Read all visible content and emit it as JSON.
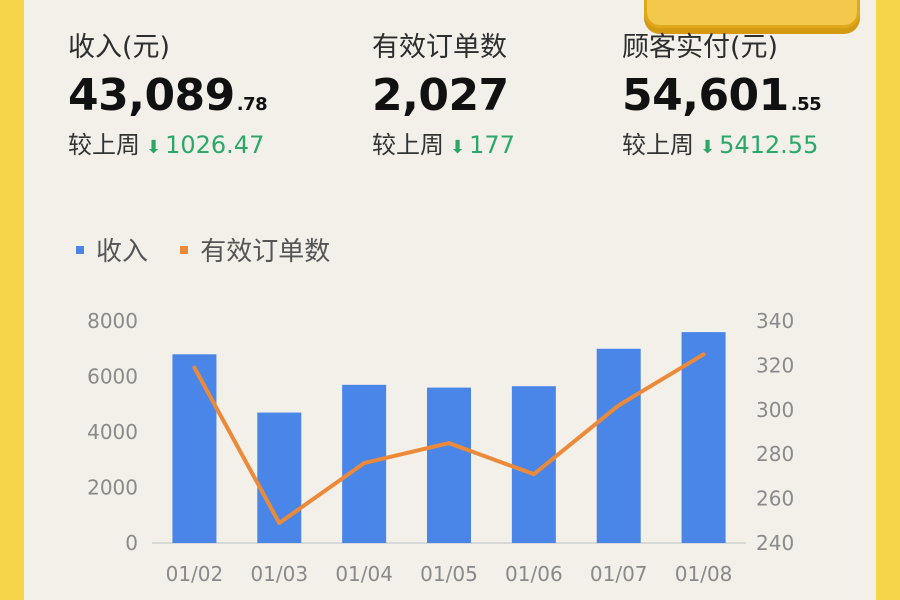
{
  "stats": [
    {
      "label": "收入(元)",
      "value_int": "43,089",
      "value_dec": ".78",
      "compare_label": "较上周",
      "arrow": "down-arrow-icon",
      "delta": "1026.47"
    },
    {
      "label": "有效订单数",
      "value_int": "2,027",
      "value_dec": "",
      "compare_label": "较上周",
      "arrow": "down-arrow-icon",
      "delta": "177"
    },
    {
      "label": "顾客实付(元)",
      "value_int": "54,601",
      "value_dec": ".55",
      "compare_label": "较上周",
      "arrow": "down-arrow-icon",
      "delta": "5412.55"
    }
  ],
  "colors": {
    "bar": "#4a86e8",
    "line": "#ec8a3a",
    "delta": "#2aa86a",
    "frame": "#f6d54a"
  },
  "chart_data": {
    "type": "bar",
    "categories": [
      "01/02",
      "01/03",
      "01/04",
      "01/05",
      "01/06",
      "01/07",
      "01/08"
    ],
    "series": [
      {
        "name": "收入",
        "type": "bar",
        "axis": "left",
        "values": [
          6800,
          4700,
          5700,
          5600,
          5650,
          7000,
          7600
        ]
      },
      {
        "name": "有效订单数",
        "type": "line",
        "axis": "right",
        "values": [
          319,
          249,
          276,
          285,
          271,
          302,
          325
        ]
      }
    ],
    "ylim_left": [
      0,
      8000
    ],
    "yticks_left": [
      "0",
      "2000",
      "4000",
      "6000",
      "8000"
    ],
    "ylim_right": [
      240,
      340
    ],
    "yticks_right": [
      "240",
      "260",
      "280",
      "300",
      "320",
      "340"
    ],
    "legend": "top-left",
    "grid": false
  }
}
